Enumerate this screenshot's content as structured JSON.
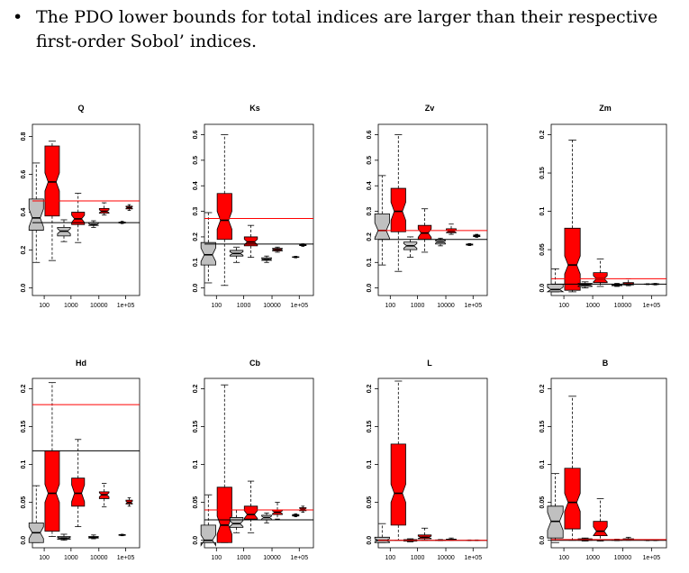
{
  "text": {
    "bullet": "•",
    "line1": "The PDO lower bounds for total indices are larger than their respective",
    "line2": "first-order Sobol’ indices."
  },
  "colors": {
    "gray_box": "#c0c0c0",
    "red_box": "#ff0000",
    "red_line": "#ff0000",
    "black_line": "#000000"
  },
  "chart_data": [
    {
      "type": "box",
      "title": "Q",
      "categories": [
        "100",
        "1000",
        "10000",
        "1e+05"
      ],
      "ylim": [
        0,
        0.85
      ],
      "yticks": [
        0.0,
        0.2,
        0.4,
        0.6,
        0.8
      ],
      "hlines": {
        "black": 0.345,
        "red": 0.46
      },
      "boxes": [
        {
          "category": "100",
          "color": "gray",
          "min": 0.135,
          "q1": 0.305,
          "median": 0.37,
          "q3": 0.47,
          "max": 0.66
        },
        {
          "category": "100",
          "color": "red",
          "min": 0.145,
          "q1": 0.38,
          "median": 0.56,
          "q3": 0.75,
          "max": 0.775
        },
        {
          "category": "1000",
          "color": "gray",
          "min": 0.245,
          "q1": 0.275,
          "median": 0.3,
          "q3": 0.32,
          "max": 0.36
        },
        {
          "category": "1000",
          "color": "red",
          "min": 0.24,
          "q1": 0.335,
          "median": 0.365,
          "q3": 0.4,
          "max": 0.5
        },
        {
          "category": "10000",
          "color": "gray",
          "min": 0.32,
          "q1": 0.33,
          "median": 0.335,
          "q3": 0.345,
          "max": 0.355
        },
        {
          "category": "10000",
          "color": "red",
          "min": 0.385,
          "q1": 0.395,
          "median": 0.405,
          "q3": 0.42,
          "max": 0.45
        },
        {
          "category": "1e+05",
          "color": "gray",
          "min": 0.34,
          "q1": 0.343,
          "median": 0.345,
          "q3": 0.348,
          "max": 0.352
        },
        {
          "category": "1e+05",
          "color": "red",
          "min": 0.41,
          "q1": 0.418,
          "median": 0.425,
          "q3": 0.432,
          "max": 0.44
        }
      ]
    },
    {
      "type": "box",
      "title": "Ks",
      "categories": [
        "100",
        "1000",
        "10000",
        "1e+05"
      ],
      "ylim": [
        0,
        0.63
      ],
      "yticks": [
        0.0,
        0.1,
        0.2,
        0.3,
        0.4,
        0.5,
        0.6
      ],
      "hlines": {
        "black": 0.172,
        "red": 0.272
      },
      "boxes": [
        {
          "category": "100",
          "color": "gray",
          "min": 0.02,
          "q1": 0.09,
          "median": 0.13,
          "q3": 0.178,
          "max": 0.295
        },
        {
          "category": "100",
          "color": "red",
          "min": 0.01,
          "q1": 0.19,
          "median": 0.265,
          "q3": 0.37,
          "max": 0.6
        },
        {
          "category": "1000",
          "color": "gray",
          "min": 0.1,
          "q1": 0.125,
          "median": 0.135,
          "q3": 0.147,
          "max": 0.16
        },
        {
          "category": "1000",
          "color": "red",
          "min": 0.12,
          "q1": 0.165,
          "median": 0.18,
          "q3": 0.2,
          "max": 0.245
        },
        {
          "category": "10000",
          "color": "gray",
          "min": 0.1,
          "q1": 0.108,
          "median": 0.112,
          "q3": 0.118,
          "max": 0.125
        },
        {
          "category": "10000",
          "color": "red",
          "min": 0.14,
          "q1": 0.145,
          "median": 0.15,
          "q3": 0.155,
          "max": 0.16
        },
        {
          "category": "1e+05",
          "color": "gray",
          "min": 0.118,
          "q1": 0.12,
          "median": 0.121,
          "q3": 0.122,
          "max": 0.124
        },
        {
          "category": "1e+05",
          "color": "red",
          "min": 0.163,
          "q1": 0.166,
          "median": 0.168,
          "q3": 0.17,
          "max": 0.173
        }
      ]
    },
    {
      "type": "box",
      "title": "Zv",
      "categories": [
        "100",
        "1000",
        "10000",
        "1e+05"
      ],
      "ylim": [
        0,
        0.63
      ],
      "yticks": [
        0.0,
        0.1,
        0.2,
        0.3,
        0.4,
        0.5,
        0.6
      ],
      "hlines": {
        "black": 0.19,
        "red": 0.225
      },
      "boxes": [
        {
          "category": "100",
          "color": "gray",
          "min": 0.09,
          "q1": 0.19,
          "median": 0.225,
          "q3": 0.29,
          "max": 0.44
        },
        {
          "category": "100",
          "color": "red",
          "min": 0.065,
          "q1": 0.22,
          "median": 0.3,
          "q3": 0.39,
          "max": 0.6
        },
        {
          "category": "1000",
          "color": "gray",
          "min": 0.12,
          "q1": 0.15,
          "median": 0.165,
          "q3": 0.18,
          "max": 0.2
        },
        {
          "category": "1000",
          "color": "red",
          "min": 0.14,
          "q1": 0.19,
          "median": 0.215,
          "q3": 0.245,
          "max": 0.31
        },
        {
          "category": "10000",
          "color": "gray",
          "min": 0.165,
          "q1": 0.172,
          "median": 0.18,
          "q3": 0.187,
          "max": 0.195
        },
        {
          "category": "10000",
          "color": "red",
          "min": 0.21,
          "q1": 0.216,
          "median": 0.222,
          "q3": 0.232,
          "max": 0.25
        },
        {
          "category": "1e+05",
          "color": "gray",
          "min": 0.166,
          "q1": 0.168,
          "median": 0.17,
          "q3": 0.172,
          "max": 0.174
        },
        {
          "category": "1e+05",
          "color": "red",
          "min": 0.198,
          "q1": 0.201,
          "median": 0.204,
          "q3": 0.207,
          "max": 0.21
        }
      ]
    },
    {
      "type": "box",
      "title": "Zm",
      "categories": [
        "100",
        "1000",
        "10000",
        "1e+05"
      ],
      "ylim": [
        0,
        0.21
      ],
      "yticks": [
        0.0,
        0.05,
        0.1,
        0.15,
        0.2
      ],
      "hlines": {
        "black": 0.005,
        "red": 0.012
      },
      "boxes": [
        {
          "category": "100",
          "color": "gray",
          "min": -0.005,
          "q1": -0.005,
          "median": -0.002,
          "q3": 0.005,
          "max": 0.025
        },
        {
          "category": "100",
          "color": "red",
          "min": -0.005,
          "q1": -0.003,
          "median": 0.03,
          "q3": 0.078,
          "max": 0.193
        },
        {
          "category": "1000",
          "color": "gray",
          "min": 0.0,
          "q1": 0.002,
          "median": 0.004,
          "q3": 0.006,
          "max": 0.008
        },
        {
          "category": "1000",
          "color": "red",
          "min": 0.002,
          "q1": 0.007,
          "median": 0.012,
          "q3": 0.02,
          "max": 0.038
        },
        {
          "category": "10000",
          "color": "gray",
          "min": 0.002,
          "q1": 0.003,
          "median": 0.004,
          "q3": 0.005,
          "max": 0.006
        },
        {
          "category": "10000",
          "color": "red",
          "min": 0.003,
          "q1": 0.004,
          "median": 0.005,
          "q3": 0.007,
          "max": 0.012
        },
        {
          "category": "1e+05",
          "color": "gray",
          "min": 0.0045,
          "q1": 0.0048,
          "median": 0.005,
          "q3": 0.0052,
          "max": 0.0055
        },
        {
          "category": "1e+05",
          "color": "red",
          "min": 0.004,
          "q1": 0.0045,
          "median": 0.005,
          "q3": 0.0055,
          "max": 0.006
        }
      ]
    },
    {
      "type": "box",
      "title": "Hd",
      "categories": [
        "100",
        "1000",
        "10000",
        "1e+05"
      ],
      "ylim": [
        0,
        0.21
      ],
      "yticks": [
        0.0,
        0.05,
        0.1,
        0.15,
        0.2
      ],
      "hlines": {
        "black": 0.118,
        "red": 0.179
      },
      "boxes": [
        {
          "category": "100",
          "color": "gray",
          "min": -0.003,
          "q1": -0.003,
          "median": 0.01,
          "q3": 0.023,
          "max": 0.072
        },
        {
          "category": "100",
          "color": "red",
          "min": 0.005,
          "q1": 0.012,
          "median": 0.062,
          "q3": 0.118,
          "max": 0.208
        },
        {
          "category": "1000",
          "color": "gray",
          "min": 0.0,
          "q1": 0.0015,
          "median": 0.003,
          "q3": 0.005,
          "max": 0.008
        },
        {
          "category": "1000",
          "color": "red",
          "min": 0.018,
          "q1": 0.045,
          "median": 0.062,
          "q3": 0.082,
          "max": 0.133
        },
        {
          "category": "10000",
          "color": "gray",
          "min": 0.002,
          "q1": 0.003,
          "median": 0.004,
          "q3": 0.005,
          "max": 0.007
        },
        {
          "category": "10000",
          "color": "red",
          "min": 0.044,
          "q1": 0.055,
          "median": 0.06,
          "q3": 0.064,
          "max": 0.075
        },
        {
          "category": "1e+05",
          "color": "gray",
          "min": 0.006,
          "q1": 0.0065,
          "median": 0.007,
          "q3": 0.0075,
          "max": 0.008
        },
        {
          "category": "1e+05",
          "color": "red",
          "min": 0.045,
          "q1": 0.048,
          "median": 0.05,
          "q3": 0.053,
          "max": 0.056
        }
      ]
    },
    {
      "type": "box",
      "title": "Cb",
      "categories": [
        "100",
        "1000",
        "10000",
        "1e+05"
      ],
      "ylim": [
        0,
        0.21
      ],
      "yticks": [
        0.0,
        0.05,
        0.1,
        0.15,
        0.2
      ],
      "hlines": {
        "black": 0.027,
        "red": 0.04
      },
      "boxes": [
        {
          "category": "100",
          "color": "gray",
          "min": -0.003,
          "q1": -0.003,
          "median": 0.0,
          "q3": 0.02,
          "max": 0.06
        },
        {
          "category": "100",
          "color": "red",
          "min": -0.003,
          "q1": -0.003,
          "median": 0.02,
          "q3": 0.07,
          "max": 0.205
        },
        {
          "category": "1000",
          "color": "gray",
          "min": 0.01,
          "q1": 0.017,
          "median": 0.022,
          "q3": 0.03,
          "max": 0.04
        },
        {
          "category": "1000",
          "color": "red",
          "min": 0.01,
          "q1": 0.028,
          "median": 0.034,
          "q3": 0.045,
          "max": 0.078
        },
        {
          "category": "10000",
          "color": "gray",
          "min": 0.023,
          "q1": 0.027,
          "median": 0.03,
          "q3": 0.033,
          "max": 0.036
        },
        {
          "category": "10000",
          "color": "red",
          "min": 0.028,
          "q1": 0.034,
          "median": 0.037,
          "q3": 0.04,
          "max": 0.05
        },
        {
          "category": "1e+05",
          "color": "gray",
          "min": 0.031,
          "q1": 0.032,
          "median": 0.033,
          "q3": 0.034,
          "max": 0.035
        },
        {
          "category": "1e+05",
          "color": "red",
          "min": 0.037,
          "q1": 0.039,
          "median": 0.041,
          "q3": 0.043,
          "max": 0.045
        }
      ]
    },
    {
      "type": "box",
      "title": "L",
      "categories": [
        "100",
        "1000",
        "10000",
        "1e+05"
      ],
      "ylim": [
        0,
        0.21
      ],
      "yticks": [
        0.0,
        0.05,
        0.1,
        0.15,
        0.2
      ],
      "hlines": {
        "black": 0.0,
        "red": 0.0
      },
      "boxes": [
        {
          "category": "100",
          "color": "gray",
          "min": -0.003,
          "q1": -0.003,
          "median": 0.0,
          "q3": 0.004,
          "max": 0.022
        },
        {
          "category": "100",
          "color": "red",
          "min": 0.0,
          "q1": 0.02,
          "median": 0.062,
          "q3": 0.127,
          "max": 0.21
        },
        {
          "category": "1000",
          "color": "gray",
          "min": -0.002,
          "q1": -0.001,
          "median": 0.0,
          "q3": 0.001,
          "max": 0.002
        },
        {
          "category": "1000",
          "color": "red",
          "min": 0.0,
          "q1": 0.002,
          "median": 0.004,
          "q3": 0.007,
          "max": 0.016
        },
        {
          "category": "10000",
          "color": "gray",
          "min": -0.0005,
          "q1": 0.0,
          "median": 0.0,
          "q3": 0.0005,
          "max": 0.001
        },
        {
          "category": "10000",
          "color": "red",
          "min": 0.0,
          "q1": 0.0005,
          "median": 0.001,
          "q3": 0.0015,
          "max": 0.003
        },
        {
          "category": "1e+05",
          "color": "gray",
          "min": -0.0003,
          "q1": -0.0001,
          "median": 0.0,
          "q3": 0.0001,
          "max": 0.0003
        },
        {
          "category": "1e+05",
          "color": "red",
          "min": -0.0003,
          "q1": -0.0001,
          "median": 0.0,
          "q3": 0.0001,
          "max": 0.0003
        }
      ]
    },
    {
      "type": "box",
      "title": "B",
      "categories": [
        "100",
        "1000",
        "10000",
        "1e+05"
      ],
      "ylim": [
        0,
        0.21
      ],
      "yticks": [
        0.0,
        0.05,
        0.1,
        0.15,
        0.2
      ],
      "hlines": {
        "black": 0.0,
        "red": 0.001
      },
      "boxes": [
        {
          "category": "100",
          "color": "gray",
          "min": -0.003,
          "q1": 0.003,
          "median": 0.025,
          "q3": 0.045,
          "max": 0.088
        },
        {
          "category": "100",
          "color": "red",
          "min": 0.0,
          "q1": 0.015,
          "median": 0.05,
          "q3": 0.095,
          "max": 0.19
        },
        {
          "category": "1000",
          "color": "gray",
          "min": -0.001,
          "q1": 0.0,
          "median": 0.001,
          "q3": 0.002,
          "max": 0.003
        },
        {
          "category": "1000",
          "color": "red",
          "min": -0.001,
          "q1": 0.006,
          "median": 0.012,
          "q3": 0.025,
          "max": 0.055
        },
        {
          "category": "10000",
          "color": "gray",
          "min": -0.0005,
          "q1": 0.0,
          "median": 0.0005,
          "q3": 0.001,
          "max": 0.0015
        },
        {
          "category": "10000",
          "color": "red",
          "min": 0.0,
          "q1": 0.001,
          "median": 0.0015,
          "q3": 0.002,
          "max": 0.004
        },
        {
          "category": "1e+05",
          "color": "gray",
          "min": -0.0003,
          "q1": -0.0001,
          "median": 0.0,
          "q3": 0.0001,
          "max": 0.0003
        },
        {
          "category": "1e+05",
          "color": "red",
          "min": -0.0003,
          "q1": 0.0,
          "median": 0.0002,
          "q3": 0.0004,
          "max": 0.0008
        }
      ]
    }
  ]
}
